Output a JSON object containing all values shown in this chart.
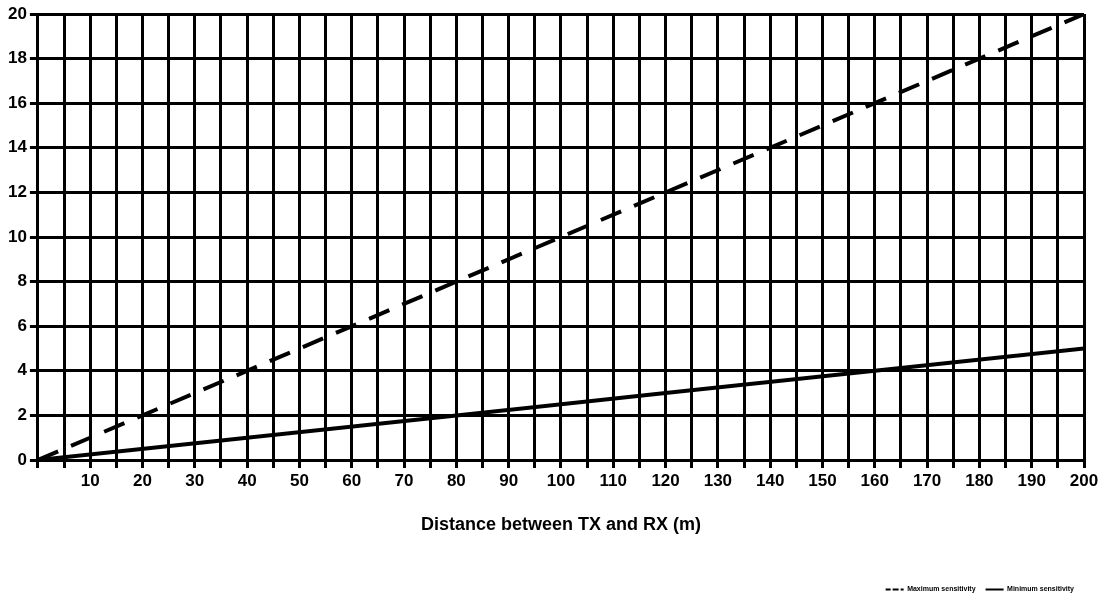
{
  "chart_data": {
    "type": "line",
    "xlabel": "Distance between TX and RX (m)",
    "xlim": [
      0,
      200
    ],
    "ylim": [
      0,
      20
    ],
    "xticks": [
      {
        "value": 0,
        "label": null
      },
      {
        "value": 5,
        "label": null
      },
      10,
      {
        "value": 15,
        "label": null
      },
      20,
      {
        "value": 25,
        "label": null
      },
      30,
      {
        "value": 35,
        "label": null
      },
      40,
      {
        "value": 45,
        "label": null
      },
      50,
      {
        "value": 55,
        "label": null
      },
      60,
      {
        "value": 65,
        "label": null
      },
      70,
      {
        "value": 75,
        "label": null
      },
      80,
      {
        "value": 85,
        "label": null
      },
      90,
      {
        "value": 95,
        "label": null
      },
      100,
      {
        "value": 105,
        "label": null
      },
      110,
      {
        "value": 115,
        "label": null
      },
      120,
      {
        "value": 125,
        "label": null
      },
      130,
      {
        "value": 135,
        "label": null
      },
      140,
      {
        "value": 145,
        "label": null
      },
      150,
      {
        "value": 155,
        "label": null
      },
      160,
      {
        "value": 165,
        "label": null
      },
      170,
      {
        "value": 175,
        "label": null
      },
      180,
      {
        "value": 185,
        "label": null
      },
      190,
      {
        "value": 195,
        "label": null
      },
      200
    ],
    "yticks": [
      0,
      2,
      4,
      6,
      8,
      10,
      12,
      14,
      16,
      18,
      20
    ],
    "grid": true,
    "legend": "bottom right",
    "marker": "none",
    "series": [
      {
        "name": "Maximum sensitivity",
        "color": "#000000",
        "line_style": "dashed",
        "x": [
          0,
          40,
          80,
          120,
          160,
          200
        ],
        "values": [
          0,
          4,
          8,
          12,
          16,
          20
        ]
      },
      {
        "name": "Minimum sensitivity",
        "color": "#000000",
        "line_style": "solid",
        "x": [
          0,
          40,
          80,
          120,
          160,
          200
        ],
        "values": [
          0,
          1,
          2,
          3,
          4,
          5
        ]
      }
    ]
  }
}
